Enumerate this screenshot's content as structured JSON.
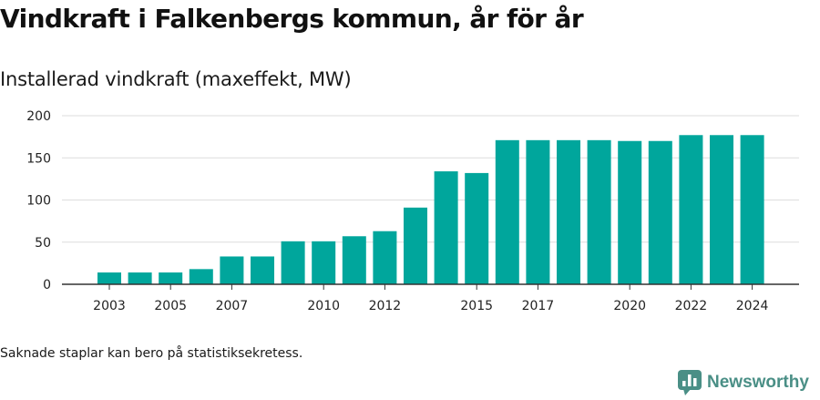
{
  "title": "Vindkraft i Falkenbergs kommun, år för år",
  "subtitle": "Installerad vindkraft (maxeffekt, MW)",
  "note": "Saknade staplar kan bero på statistiksekretess.",
  "brand": {
    "name": "Newsworthy",
    "color": "#4a8f86"
  },
  "colors": {
    "bar": "#00a69c",
    "grid": "#dddddd",
    "axis": "#333333",
    "text": "#222222"
  },
  "chart_data": {
    "type": "bar",
    "title": "Vindkraft i Falkenbergs kommun, år för år",
    "ylabel": "Installerad vindkraft (maxeffekt, MW)",
    "xlabel": "",
    "ylim": [
      0,
      200
    ],
    "yticks": [
      0,
      50,
      100,
      150,
      200
    ],
    "grid": true,
    "categories": [
      "2003",
      "2004",
      "2005",
      "2006",
      "2007",
      "2008",
      "2009",
      "2010",
      "2011",
      "2012",
      "2013",
      "2014",
      "2015",
      "2016",
      "2017",
      "2018",
      "2019",
      "2020",
      "2021",
      "2022",
      "2023",
      "2024"
    ],
    "values": [
      14,
      14,
      14,
      18,
      33,
      33,
      51,
      51,
      57,
      63,
      91,
      134,
      132,
      171,
      171,
      171,
      171,
      170,
      170,
      177,
      177,
      177
    ],
    "xtick_labels": [
      "2003",
      "2005",
      "2007",
      "2010",
      "2012",
      "2015",
      "2017",
      "2020",
      "2022",
      "2024"
    ]
  }
}
